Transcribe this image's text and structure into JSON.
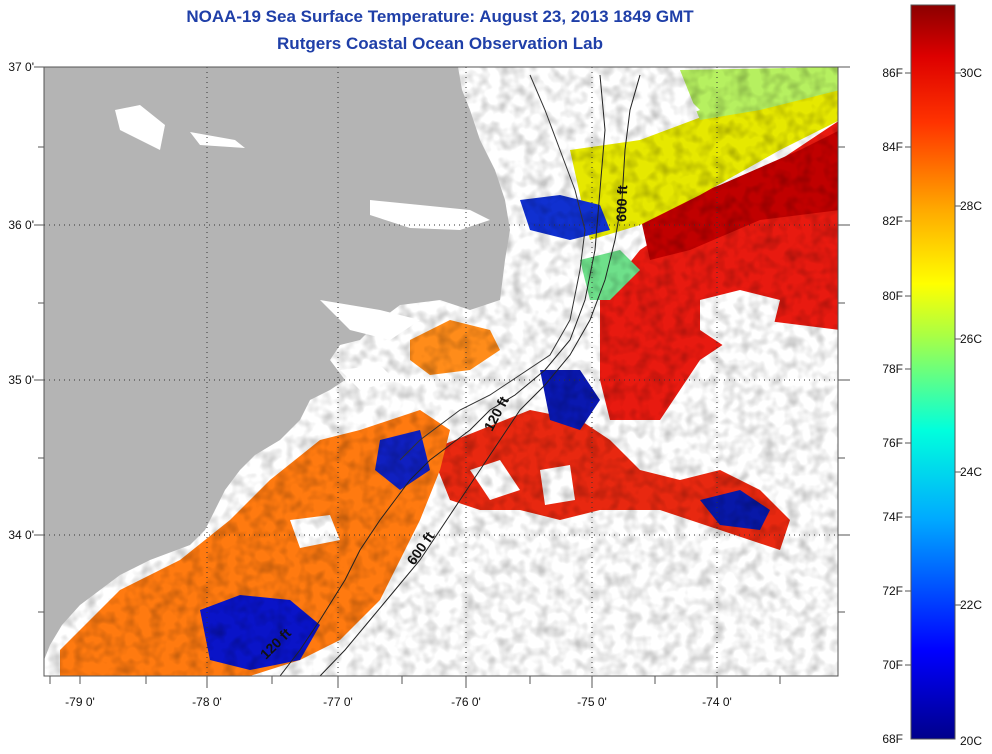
{
  "title": "NOAA-19 Sea Surface Temperature:  August 23, 2013 1849 GMT",
  "subtitle": "Rutgers Coastal Ocean Observation Lab",
  "lat_labels": [
    "37 0'",
    "36 0'",
    "35 0'",
    "34 0'"
  ],
  "lon_labels": [
    "-79 0'",
    "-78 0'",
    "-77 0'",
    "-76 0'",
    "-75 0'",
    "-74 0'"
  ],
  "contours": [
    "600 ft",
    "120 ft",
    "600 ft",
    "120 ft"
  ],
  "colorbar": {
    "f_labels": [
      "86F",
      "84F",
      "82F",
      "80F",
      "78F",
      "76F",
      "74F",
      "72F",
      "70F",
      "68F"
    ],
    "c_labels": [
      "30C",
      "28C",
      "26C",
      "24C",
      "22C",
      "20C"
    ],
    "min_color": "#00008b",
    "max_color": "#8b0000"
  },
  "colors": {
    "land": "#b4b4b4",
    "water_nodata": "#ffffff",
    "title": "#1f3fa8"
  }
}
